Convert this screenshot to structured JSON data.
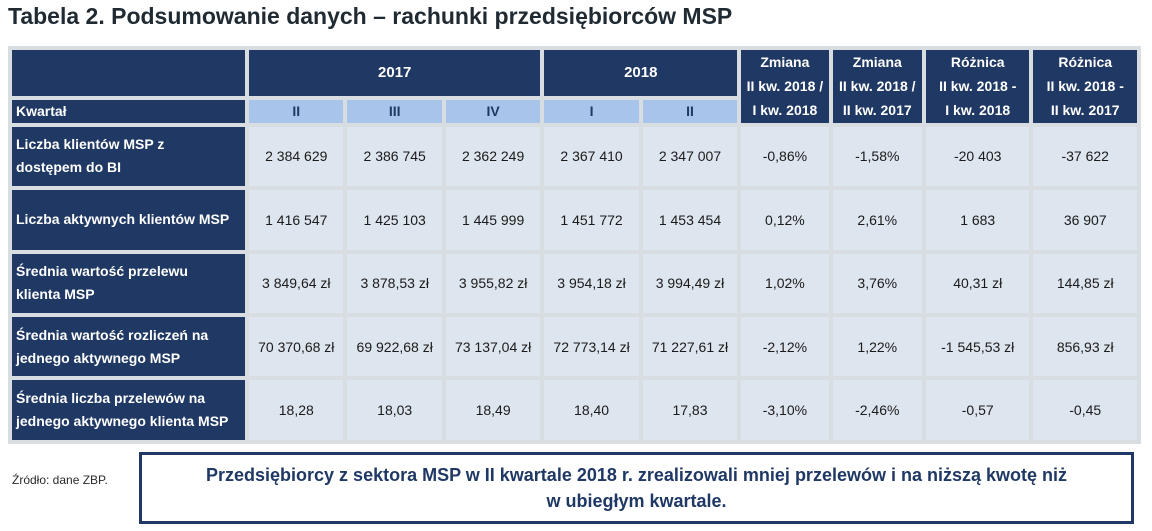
{
  "title": "Tabela 2. Podsumowanie danych – rachunki przedsiębiorców MSP",
  "table": {
    "year_2017": "2017",
    "year_2018": "2018",
    "change_headers": [
      [
        "Zmiana",
        "II kw. 2018 /",
        "I kw. 2018"
      ],
      [
        "Zmiana",
        "II kw. 2018 /",
        "II kw. 2017"
      ],
      [
        "Różnica",
        "II kw. 2018 -",
        "I kw. 2018"
      ],
      [
        "Różnica",
        "II kw. 2018 -",
        "II kw. 2017"
      ]
    ],
    "kwartal_label": "Kwartał",
    "quarters": [
      "II",
      "III",
      "IV",
      "I",
      "II"
    ],
    "rows": [
      {
        "label": [
          "Liczba klientów MSP z",
          "dostępem do BI"
        ],
        "values": [
          "2 384 629",
          "2 386 745",
          "2 362 249",
          "2 367 410",
          "2 347 007",
          "-0,86%",
          "-1,58%",
          "-20 403",
          "-37 622"
        ]
      },
      {
        "label": [
          "Liczba aktywnych klientów MSP"
        ],
        "values": [
          "1 416 547",
          "1 425 103",
          "1 445 999",
          "1 451 772",
          "1 453 454",
          "0,12%",
          "2,61%",
          "1 683",
          "36 907"
        ]
      },
      {
        "label": [
          "Średnia wartość przelewu",
          "klienta MSP"
        ],
        "values": [
          "3 849,64 zł",
          "3 878,53 zł",
          "3 955,82 zł",
          "3 954,18 zł",
          "3 994,49 zł",
          "1,02%",
          "3,76%",
          "40,31 zł",
          "144,85 zł"
        ]
      },
      {
        "label": [
          "Średnia wartość rozliczeń na",
          "jednego aktywnego MSP"
        ],
        "values": [
          "70 370,68 zł",
          "69 922,68 zł",
          "73 137,04 zł",
          "72 773,14 zł",
          "71 227,61 zł",
          "-2,12%",
          "1,22%",
          "-1 545,53 zł",
          "856,93 zł"
        ]
      },
      {
        "label": [
          "Średnia liczba przelewów na",
          "jednego aktywnego klienta MSP"
        ],
        "values": [
          "18,28",
          "18,03",
          "18,49",
          "18,40",
          "17,83",
          "-3,10%",
          "-2,46%",
          "-0,57",
          "-0,45"
        ]
      }
    ]
  },
  "source_note": "Źródło: dane ZBP.",
  "callout": [
    "Przedsiębiorcy z sektora MSP w II kwartale 2018 r. zrealizowali mniej przelewów i na niższą kwotę niż",
    "w ubiegłym kwartale."
  ],
  "colors": {
    "header_dark": "#1f3864",
    "quarter_header": "#a9c4ea",
    "data_cell": "#dde5ee",
    "grid": "#d8dde2"
  }
}
